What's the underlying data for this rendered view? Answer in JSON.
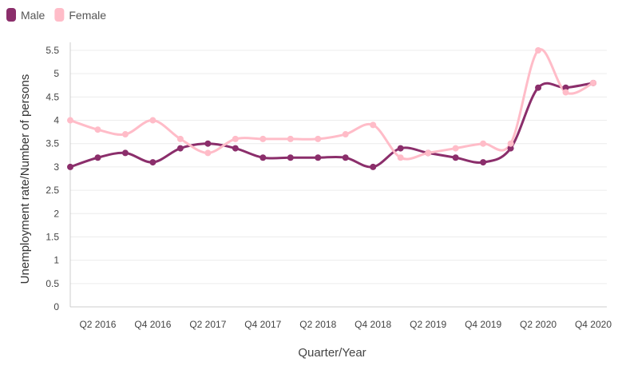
{
  "chart_data": {
    "type": "line",
    "categories": [
      null,
      "Q2 2016",
      null,
      "Q4 2016",
      null,
      "Q2 2017",
      null,
      "Q4 2017",
      null,
      "Q2 2018",
      null,
      "Q4 2018",
      null,
      "Q2 2019",
      null,
      "Q4 2019",
      null,
      "Q2 2020",
      null,
      "Q4 2020"
    ],
    "series": [
      {
        "name": "Male",
        "color": "#8b2e6b",
        "values": [
          3.0,
          3.2,
          3.3,
          3.1,
          3.4,
          3.5,
          3.4,
          3.2,
          3.2,
          3.2,
          3.2,
          3.0,
          3.4,
          3.3,
          3.2,
          3.1,
          3.4,
          4.7,
          4.7,
          4.8
        ]
      },
      {
        "name": "Female",
        "color": "#ffbcc8",
        "values": [
          4.0,
          3.8,
          3.7,
          4.0,
          3.6,
          3.3,
          3.6,
          3.6,
          3.6,
          3.6,
          3.7,
          3.9,
          3.2,
          3.3,
          3.4,
          3.5,
          3.5,
          5.5,
          4.6,
          4.8
        ]
      }
    ],
    "ylim": [
      0,
      5.5
    ],
    "yticks": [
      0,
      0.5,
      1,
      1.5,
      2,
      2.5,
      3,
      3.5,
      4,
      4.5,
      5,
      5.5
    ],
    "xlabel": "Quarter/Year",
    "ylabel": "Unemployment rate/Number of persons",
    "grid": true,
    "legend": "top-left"
  }
}
